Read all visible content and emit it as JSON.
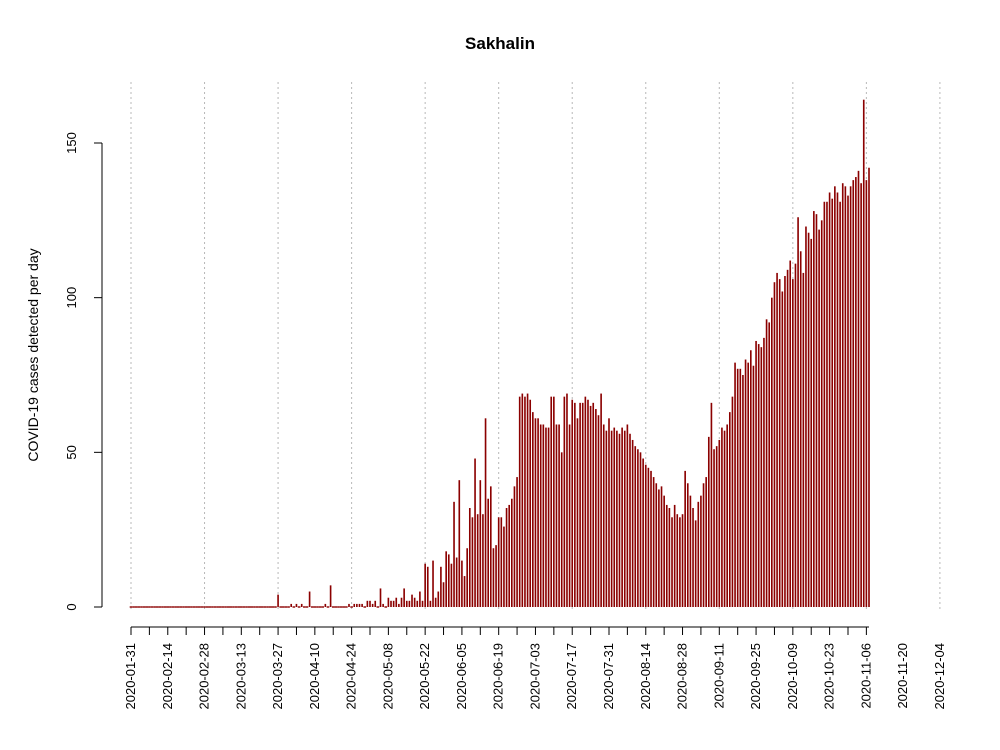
{
  "chart_data": {
    "type": "bar",
    "title": "Sakhalin",
    "xlabel": "",
    "ylabel": "COVID-19 cases detected per day",
    "start_date": "2020-01-31",
    "end_date": "2020-12-12",
    "ylim": [
      0,
      165
    ],
    "y_ticks": [
      0,
      50,
      100,
      150
    ],
    "x_tick_labels": [
      "2020-01-31",
      "2020-02-14",
      "2020-02-28",
      "2020-03-13",
      "2020-03-27",
      "2020-04-10",
      "2020-04-24",
      "2020-05-08",
      "2020-05-22",
      "2020-06-05",
      "2020-06-19",
      "2020-07-03",
      "2020-07-17",
      "2020-07-31",
      "2020-08-14",
      "2020-08-28",
      "2020-09-11",
      "2020-09-25",
      "2020-10-09",
      "2020-10-23",
      "2020-11-06",
      "2020-11-20",
      "2020-12-04"
    ],
    "grid": "vertical dotted at every other tick",
    "bar_color": "#8b0000",
    "values": [
      0,
      0,
      0,
      0,
      0,
      0,
      0,
      0,
      0,
      0,
      0,
      0,
      0,
      0,
      0,
      0,
      0,
      0,
      0,
      0,
      0,
      0,
      0,
      0,
      0,
      0,
      0,
      0,
      0,
      0,
      0,
      0,
      0,
      0,
      0,
      0,
      0,
      0,
      0,
      0,
      0,
      0,
      0,
      0,
      0,
      0,
      0,
      0,
      0,
      0,
      0,
      0,
      0,
      0,
      0,
      0,
      4,
      0,
      0,
      0,
      0,
      1,
      0,
      1,
      0,
      1,
      0,
      0,
      5,
      0,
      0,
      0,
      0,
      0,
      1,
      0,
      7,
      0,
      0,
      0,
      0,
      0,
      0,
      1,
      0,
      1,
      1,
      1,
      1,
      0,
      2,
      2,
      1,
      2,
      0,
      6,
      1,
      0,
      3,
      2,
      2,
      3,
      1,
      3,
      6,
      2,
      2,
      4,
      3,
      2,
      5,
      2,
      14,
      13,
      2,
      15,
      3,
      5,
      13,
      8,
      18,
      17,
      14,
      34,
      16,
      41,
      15,
      10,
      19,
      32,
      29,
      48,
      30,
      41,
      30,
      61,
      35,
      39,
      19,
      20,
      29,
      29,
      26,
      32,
      33,
      35,
      39,
      42,
      68,
      69,
      68,
      69,
      67,
      63,
      61,
      61,
      59,
      59,
      58,
      58,
      68,
      68,
      59,
      59,
      50,
      68,
      69,
      59,
      67,
      66,
      61,
      66,
      66,
      68,
      67,
      65,
      66,
      64,
      62,
      69,
      59,
      57,
      61,
      57,
      58,
      57,
      56,
      58,
      57,
      59,
      56,
      54,
      52,
      51,
      50,
      48,
      46,
      45,
      44,
      42,
      40,
      38,
      39,
      36,
      33,
      32,
      29,
      33,
      30,
      29,
      30,
      44,
      40,
      36,
      32,
      28,
      34,
      36,
      40,
      42,
      55,
      66,
      51,
      52,
      54,
      58,
      57,
      59,
      63,
      68,
      79,
      77,
      77,
      75,
      80,
      79,
      83,
      78,
      86,
      85,
      84,
      87,
      93,
      92,
      100,
      105,
      108,
      106,
      102,
      107,
      109,
      112,
      106,
      111,
      126,
      115,
      108,
      123,
      121,
      119,
      128,
      127,
      122,
      125,
      131,
      131,
      134,
      132,
      136,
      134,
      131,
      137,
      136,
      133,
      136,
      138,
      139,
      141,
      137,
      164,
      138,
      142
    ]
  }
}
